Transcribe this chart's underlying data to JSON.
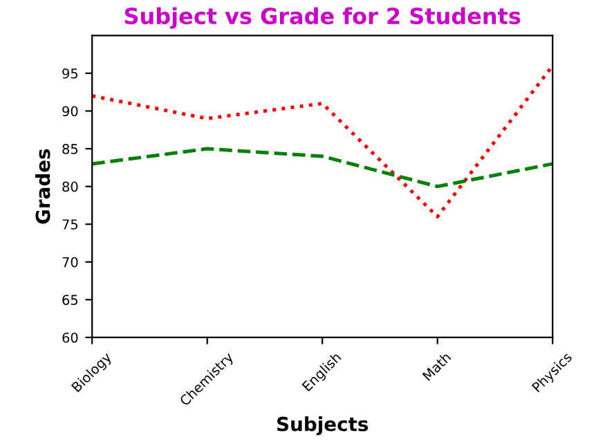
{
  "chart_data": {
    "type": "line",
    "title": "Subject vs Grade for 2 Students",
    "xlabel": "Subjects",
    "ylabel": "Grades",
    "categories": [
      "Biology",
      "Chemistry",
      "English",
      "Math",
      "Physics"
    ],
    "series": [
      {
        "color": "#ff0000",
        "values": [
          92,
          89,
          91,
          76,
          96
        ],
        "line_style": "dotted"
      },
      {
        "color": "#008000",
        "values": [
          83,
          85,
          84,
          80,
          83
        ],
        "line_style": "dashed"
      }
    ],
    "ylim": [
      60,
      100
    ],
    "yticks": [
      60,
      65,
      70,
      75,
      80,
      85,
      90,
      95
    ],
    "grid": false,
    "legend": false,
    "marker": "none"
  }
}
